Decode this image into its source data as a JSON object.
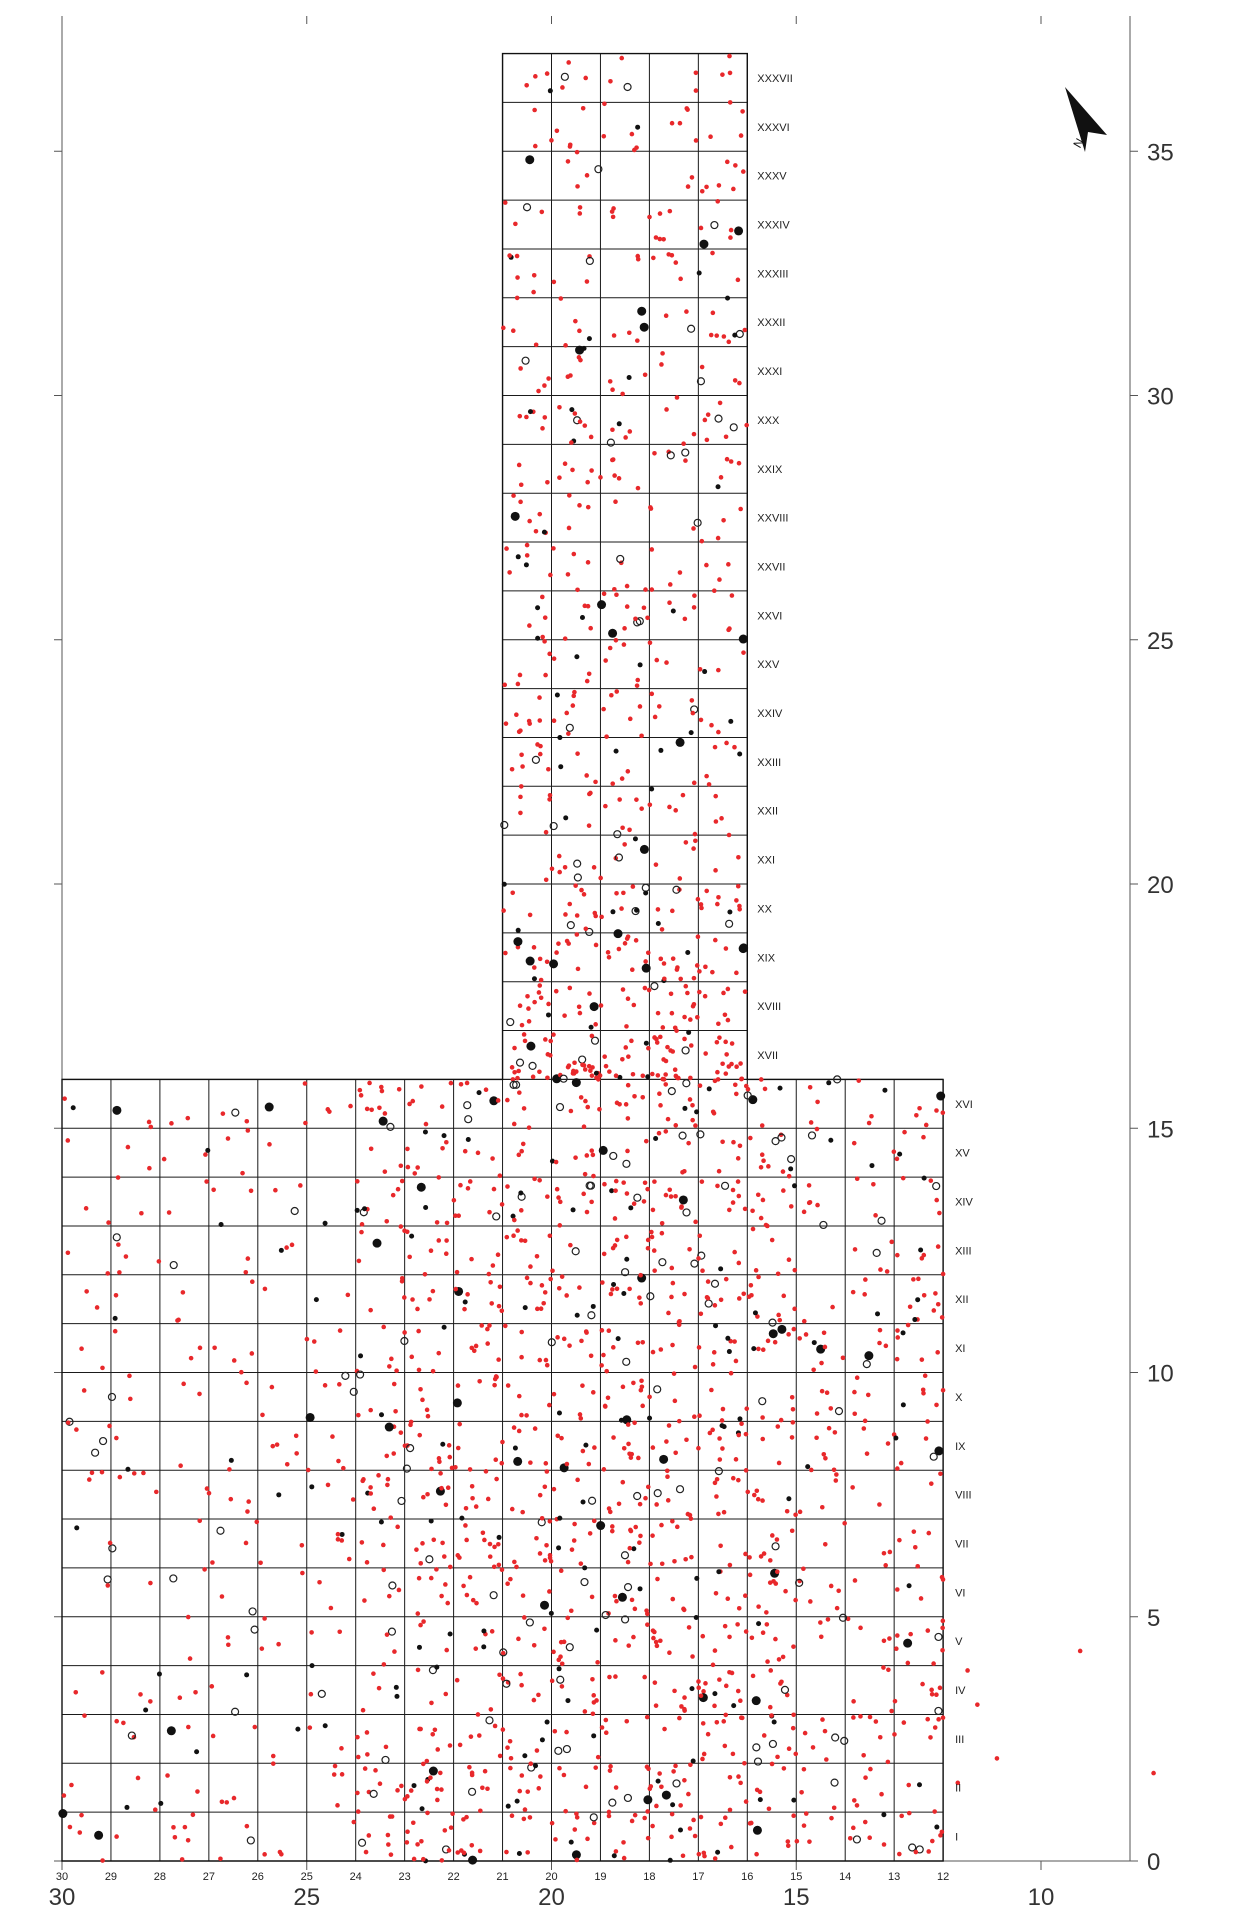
{
  "north_arrow": {
    "letter": "N"
  },
  "scale": {
    "bottom_major": [
      "30",
      "25",
      "20",
      "15",
      "10"
    ],
    "bottom_minor": [
      "30",
      "29",
      "28",
      "27",
      "26",
      "25",
      "24",
      "23",
      "22",
      "21",
      "20",
      "19",
      "18",
      "17",
      "16",
      "15",
      "14",
      "13",
      "12"
    ],
    "right_major": [
      "35",
      "30",
      "25",
      "20",
      "15",
      "10",
      "5",
      "0"
    ]
  },
  "rows": [
    "I",
    "II",
    "III",
    "IV",
    "V",
    "VI",
    "VII",
    "VIII",
    "IX",
    "X",
    "XI",
    "XII",
    "XIII",
    "XIV",
    "XV",
    "XVI",
    "XVII",
    "XVIII",
    "XIX",
    "XX",
    "XXI",
    "XXII",
    "XXIII",
    "XXIV",
    "XXV",
    "XXVI",
    "XXVII",
    "XXVIII",
    "XXIX",
    "XXX",
    "XXXI",
    "XXXII",
    "XXXIII",
    "XXXIV",
    "XXXV",
    "XXXVI",
    "XXXVII"
  ],
  "colors": {
    "red_dot": "#e8282b",
    "black_dot": "#111111"
  },
  "legend_marks": [
    "red-dot",
    "black-dot",
    "open-circle"
  ]
}
